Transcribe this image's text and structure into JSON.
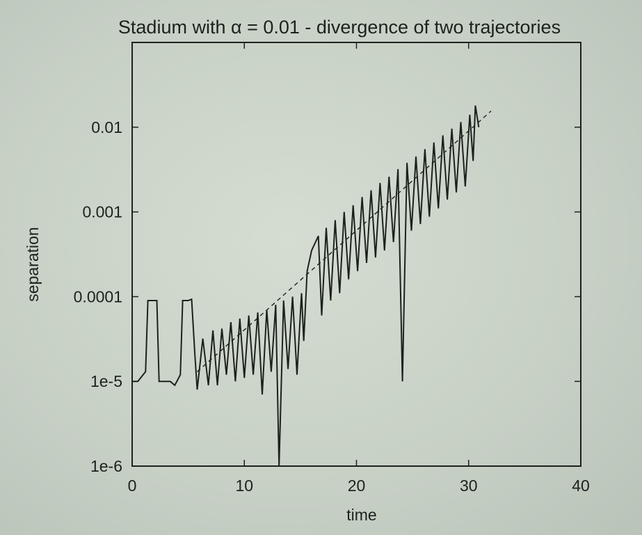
{
  "chart_data": {
    "type": "line",
    "title": "Stadium with α = 0.01 - divergence of two trajectories",
    "xlabel": "time",
    "ylabel": "separation",
    "xlim": [
      0,
      40
    ],
    "ylim": [
      1e-06,
      0.1
    ],
    "yscale": "log",
    "grid": false,
    "x_ticks": [
      "0",
      "10",
      "20",
      "30",
      "40"
    ],
    "y_ticks": [
      "1e-6",
      "1e-5",
      "0.0001",
      "0.001",
      "0.01"
    ],
    "series": [
      {
        "style": "solid",
        "points": [
          [
            0,
            1e-05
          ],
          [
            0.5,
            1e-05
          ],
          [
            1.2,
            1.3e-05
          ],
          [
            1.4,
            9e-05
          ],
          [
            2.2,
            9e-05
          ],
          [
            2.4,
            1e-05
          ],
          [
            3.4,
            1e-05
          ],
          [
            3.8,
            9e-06
          ],
          [
            4.3,
            1.2e-05
          ],
          [
            4.5,
            9e-05
          ],
          [
            5.0,
            9e-05
          ],
          [
            5.3,
            9.3e-05
          ],
          [
            5.6,
            2e-05
          ],
          [
            5.8,
            8e-06
          ],
          [
            6.3,
            3.2e-05
          ],
          [
            6.8,
            9e-06
          ],
          [
            7.2,
            4e-05
          ],
          [
            7.6,
            9e-06
          ],
          [
            8.0,
            4.2e-05
          ],
          [
            8.4,
            1.2e-05
          ],
          [
            8.8,
            5e-05
          ],
          [
            9.2,
            1e-05
          ],
          [
            9.6,
            5.5e-05
          ],
          [
            10.0,
            1.1e-05
          ],
          [
            10.4,
            6e-05
          ],
          [
            10.8,
            1.2e-05
          ],
          [
            11.2,
            6.5e-05
          ],
          [
            11.6,
            7e-06
          ],
          [
            12.0,
            7e-05
          ],
          [
            12.4,
            1.3e-05
          ],
          [
            12.8,
            8e-05
          ],
          [
            13.1,
            1e-06
          ],
          [
            13.5,
            9e-05
          ],
          [
            13.9,
            1.4e-05
          ],
          [
            14.3,
            0.0001
          ],
          [
            14.7,
            1.2e-05
          ],
          [
            15.1,
            0.00011
          ],
          [
            15.3,
            3e-05
          ],
          [
            15.6,
            0.0002
          ],
          [
            16.0,
            0.00035
          ],
          [
            16.6,
            0.00052
          ],
          [
            16.9,
            6e-05
          ],
          [
            17.3,
            0.00065
          ],
          [
            17.7,
            9e-05
          ],
          [
            18.1,
            0.0008
          ],
          [
            18.5,
            0.00011
          ],
          [
            18.9,
            0.001
          ],
          [
            19.3,
            0.00016
          ],
          [
            19.7,
            0.0012
          ],
          [
            20.1,
            0.0002
          ],
          [
            20.5,
            0.0015
          ],
          [
            20.9,
            0.00025
          ],
          [
            21.3,
            0.0018
          ],
          [
            21.7,
            0.00029
          ],
          [
            22.1,
            0.0022
          ],
          [
            22.5,
            0.00035
          ],
          [
            22.9,
            0.0026
          ],
          [
            23.3,
            0.00044
          ],
          [
            23.7,
            0.0032
          ],
          [
            24.1,
            1e-05
          ],
          [
            24.5,
            0.0038
          ],
          [
            24.9,
            0.0006
          ],
          [
            25.3,
            0.0045
          ],
          [
            25.7,
            0.00072
          ],
          [
            26.1,
            0.0055
          ],
          [
            26.5,
            0.00088
          ],
          [
            26.9,
            0.0066
          ],
          [
            27.3,
            0.0011
          ],
          [
            27.7,
            0.008
          ],
          [
            28.1,
            0.0014
          ],
          [
            28.5,
            0.0096
          ],
          [
            28.9,
            0.0017
          ],
          [
            29.3,
            0.0115
          ],
          [
            29.7,
            0.002
          ],
          [
            30.1,
            0.014
          ],
          [
            30.4,
            0.004
          ],
          [
            30.6,
            0.018
          ],
          [
            30.9,
            0.01
          ]
        ]
      },
      {
        "style": "dashed",
        "points": [
          [
            5.8,
            1.3e-05
          ],
          [
            32.0,
            0.0155
          ]
        ]
      }
    ]
  }
}
